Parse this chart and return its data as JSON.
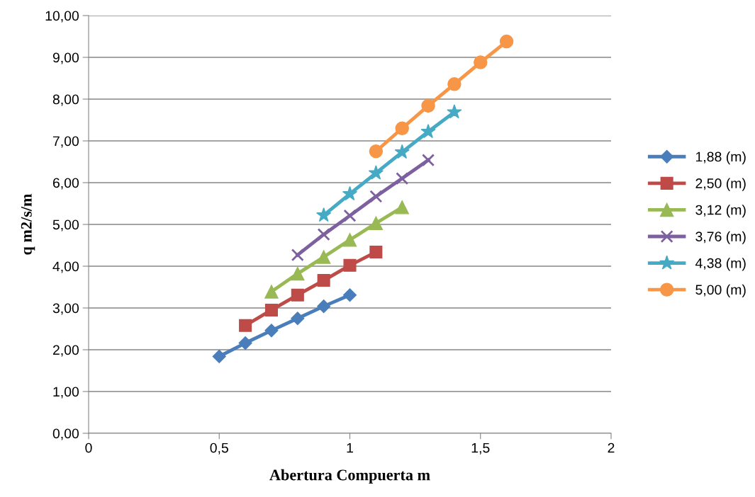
{
  "chart_data": {
    "type": "line",
    "xlabel": "Abertura Compuerta m",
    "ylabel": "q m2/s/m",
    "xlim": [
      0,
      2
    ],
    "xticks": [
      0,
      {
        "value": 0.5,
        "label": "0,5"
      },
      1,
      {
        "value": 1.5,
        "label": "1,5"
      },
      2
    ],
    "ylim": [
      0,
      10
    ],
    "yticks": [
      {
        "value": 0,
        "label": "0,00"
      },
      {
        "value": 1,
        "label": "1,00"
      },
      {
        "value": 2,
        "label": "2,00"
      },
      {
        "value": 3,
        "label": "3,00"
      },
      {
        "value": 4,
        "label": "4,00"
      },
      {
        "value": 5,
        "label": "5,00"
      },
      {
        "value": 6,
        "label": "6,00"
      },
      {
        "value": 7,
        "label": "7,00"
      },
      {
        "value": 8,
        "label": "8,00"
      },
      {
        "value": 9,
        "label": "9,00"
      },
      {
        "value": 10,
        "label": "10,00"
      }
    ],
    "grid": "y",
    "legend": "right",
    "line_style": "solid",
    "series": [
      {
        "name": "1,88 (m)",
        "color": "#4a7ebb",
        "marker": "diamond",
        "x": [
          0.5,
          0.6,
          0.7,
          0.8,
          0.9,
          1.0
        ],
        "values": [
          1.84,
          2.16,
          2.46,
          2.75,
          3.04,
          3.31
        ]
      },
      {
        "name": "2,50 (m)",
        "color": "#be4b48",
        "marker": "square",
        "x": [
          0.6,
          0.7,
          0.8,
          0.9,
          1.0,
          1.1
        ],
        "values": [
          2.58,
          2.95,
          3.31,
          3.66,
          4.02,
          4.34
        ]
      },
      {
        "name": "3,12 (m)",
        "color": "#98b954",
        "marker": "triangle",
        "x": [
          0.7,
          0.8,
          0.9,
          1.0,
          1.1,
          1.2
        ],
        "values": [
          3.39,
          3.82,
          4.22,
          4.63,
          5.03,
          5.41
        ]
      },
      {
        "name": "3,76 (m)",
        "color": "#7d60a0",
        "marker": "cross",
        "x": [
          0.8,
          0.9,
          1.0,
          1.1,
          1.2,
          1.3
        ],
        "values": [
          4.27,
          4.76,
          5.21,
          5.67,
          6.1,
          6.54
        ]
      },
      {
        "name": "4,38 (m)",
        "color": "#46aac5",
        "marker": "star",
        "x": [
          0.9,
          1.0,
          1.1,
          1.2,
          1.3,
          1.4
        ],
        "values": [
          5.22,
          5.73,
          6.23,
          6.73,
          7.22,
          7.69
        ]
      },
      {
        "name": "5,00 (m)",
        "color": "#f79646",
        "marker": "circle",
        "x": [
          1.1,
          1.2,
          1.3,
          1.4,
          1.5,
          1.6
        ],
        "values": [
          6.75,
          7.3,
          7.84,
          8.36,
          8.88,
          9.38
        ]
      }
    ]
  }
}
